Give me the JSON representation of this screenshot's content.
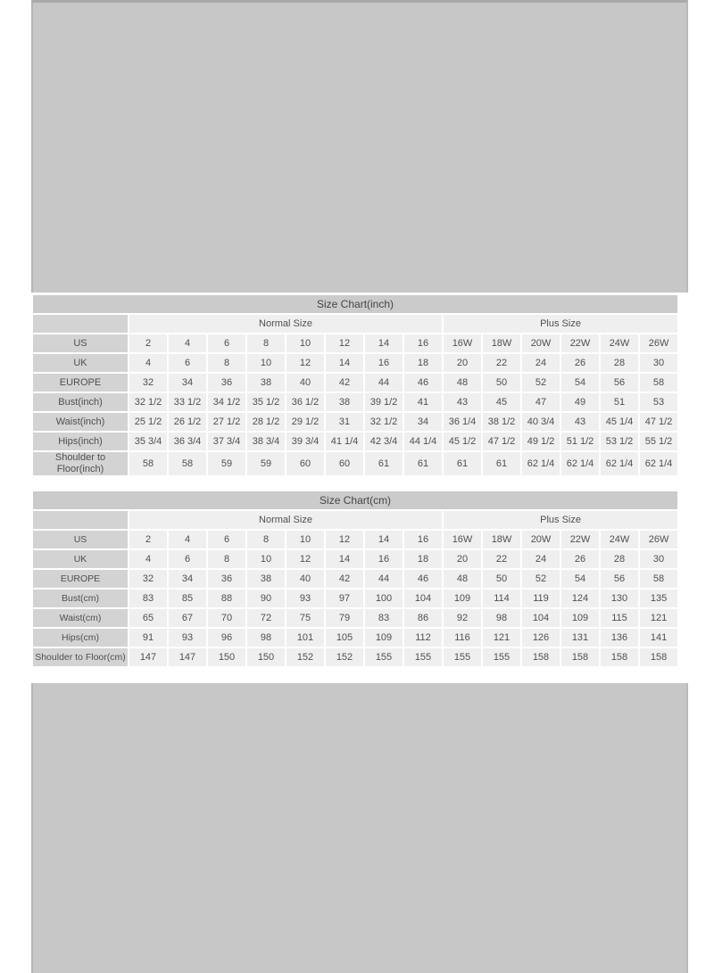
{
  "colors": {
    "page_bg": "#ffffff",
    "stage_bg": "#c7c7c7",
    "title_bar_bg": "#cbcbcb",
    "label_cell_bg": "#d3d3d3",
    "data_cell_bg": "#efefef",
    "text": "#4f4f4f"
  },
  "chart_data": [
    {
      "type": "table",
      "title": "Size Chart(inch)",
      "group_headers": [
        "Normal Size",
        "Plus Size"
      ],
      "rows": [
        {
          "label": "US",
          "values": [
            "2",
            "4",
            "6",
            "8",
            "10",
            "12",
            "14",
            "16",
            "16W",
            "18W",
            "20W",
            "22W",
            "24W",
            "26W"
          ]
        },
        {
          "label": "UK",
          "values": [
            "4",
            "6",
            "8",
            "10",
            "12",
            "14",
            "16",
            "18",
            "20",
            "22",
            "24",
            "26",
            "28",
            "30"
          ]
        },
        {
          "label": "EUROPE",
          "values": [
            "32",
            "34",
            "36",
            "38",
            "40",
            "42",
            "44",
            "46",
            "48",
            "50",
            "52",
            "54",
            "56",
            "58"
          ]
        },
        {
          "label": "Bust(inch)",
          "values": [
            "32 1/2",
            "33 1/2",
            "34 1/2",
            "35 1/2",
            "36 1/2",
            "38",
            "39 1/2",
            "41",
            "43",
            "45",
            "47",
            "49",
            "51",
            "53"
          ]
        },
        {
          "label": "Waist(inch)",
          "values": [
            "25 1/2",
            "26 1/2",
            "27 1/2",
            "28 1/2",
            "29 1/2",
            "31",
            "32 1/2",
            "34",
            "36 1/4",
            "38 1/2",
            "40 3/4",
            "43",
            "45 1/4",
            "47 1/2"
          ]
        },
        {
          "label": "Hips(inch)",
          "values": [
            "35 3/4",
            "36 3/4",
            "37 3/4",
            "38 3/4",
            "39 3/4",
            "41 1/4",
            "42 3/4",
            "44 1/4",
            "45 1/2",
            "47 1/2",
            "49 1/2",
            "51 1/2",
            "53 1/2",
            "55 1/2"
          ]
        },
        {
          "label": "Shoulder to Floor(inch)",
          "values": [
            "58",
            "58",
            "59",
            "59",
            "60",
            "60",
            "61",
            "61",
            "61",
            "61",
            "62 1/4",
            "62 1/4",
            "62 1/4",
            "62 1/4"
          ]
        }
      ]
    },
    {
      "type": "table",
      "title": "Size Chart(cm)",
      "group_headers": [
        "Normal Size",
        "Plus Size"
      ],
      "rows": [
        {
          "label": "US",
          "values": [
            "2",
            "4",
            "6",
            "8",
            "10",
            "12",
            "14",
            "16",
            "16W",
            "18W",
            "20W",
            "22W",
            "24W",
            "26W"
          ]
        },
        {
          "label": "UK",
          "values": [
            "4",
            "6",
            "8",
            "10",
            "12",
            "14",
            "16",
            "18",
            "20",
            "22",
            "24",
            "26",
            "28",
            "30"
          ]
        },
        {
          "label": "EUROPE",
          "values": [
            "32",
            "34",
            "36",
            "38",
            "40",
            "42",
            "44",
            "46",
            "48",
            "50",
            "52",
            "54",
            "56",
            "58"
          ]
        },
        {
          "label": "Bust(cm)",
          "values": [
            "83",
            "85",
            "88",
            "90",
            "93",
            "97",
            "100",
            "104",
            "109",
            "114",
            "119",
            "124",
            "130",
            "135"
          ]
        },
        {
          "label": "Waist(cm)",
          "values": [
            "65",
            "67",
            "70",
            "72",
            "75",
            "79",
            "83",
            "86",
            "92",
            "98",
            "104",
            "109",
            "115",
            "121"
          ]
        },
        {
          "label": "Hips(cm)",
          "values": [
            "91",
            "93",
            "96",
            "98",
            "101",
            "105",
            "109",
            "112",
            "116",
            "121",
            "126",
            "131",
            "136",
            "141"
          ]
        },
        {
          "label": "Shoulder to Floor(cm)",
          "values": [
            "147",
            "147",
            "150",
            "150",
            "152",
            "152",
            "155",
            "155",
            "155",
            "155",
            "158",
            "158",
            "158",
            "158"
          ]
        }
      ]
    }
  ]
}
